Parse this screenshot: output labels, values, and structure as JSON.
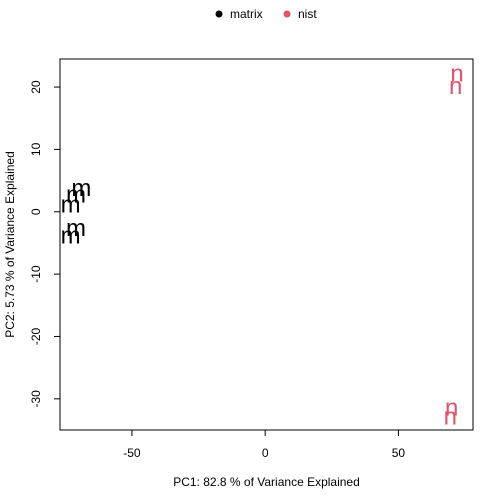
{
  "chart_data": {
    "type": "scatter",
    "title": "",
    "xlabel": "PC1: 82.8 % of Variance Explained",
    "ylabel": "PC2: 5.73 % of Variance Explained",
    "xlim": [
      -77,
      78
    ],
    "ylim": [
      -35,
      24.5
    ],
    "x_ticks": [
      -50,
      0,
      50
    ],
    "y_ticks": [
      -30,
      -20,
      -10,
      0,
      10,
      20
    ],
    "grid": false,
    "legend_position": "top-center",
    "series": [
      {
        "name": "matrix",
        "color": "#000000",
        "glyph": "m",
        "points": [
          {
            "x": -69,
            "y": 3.8
          },
          {
            "x": -71,
            "y": 2.8
          },
          {
            "x": -73,
            "y": 1.2
          },
          {
            "x": -71,
            "y": -2.6
          },
          {
            "x": -73,
            "y": -3.8
          }
        ]
      },
      {
        "name": "nist",
        "color": "#DF536B",
        "glyph": "n",
        "points": [
          {
            "x": 72,
            "y": 22.2
          },
          {
            "x": 71.5,
            "y": 20.2
          },
          {
            "x": 70,
            "y": -31.4
          },
          {
            "x": 69.5,
            "y": -32.8
          }
        ]
      }
    ]
  }
}
